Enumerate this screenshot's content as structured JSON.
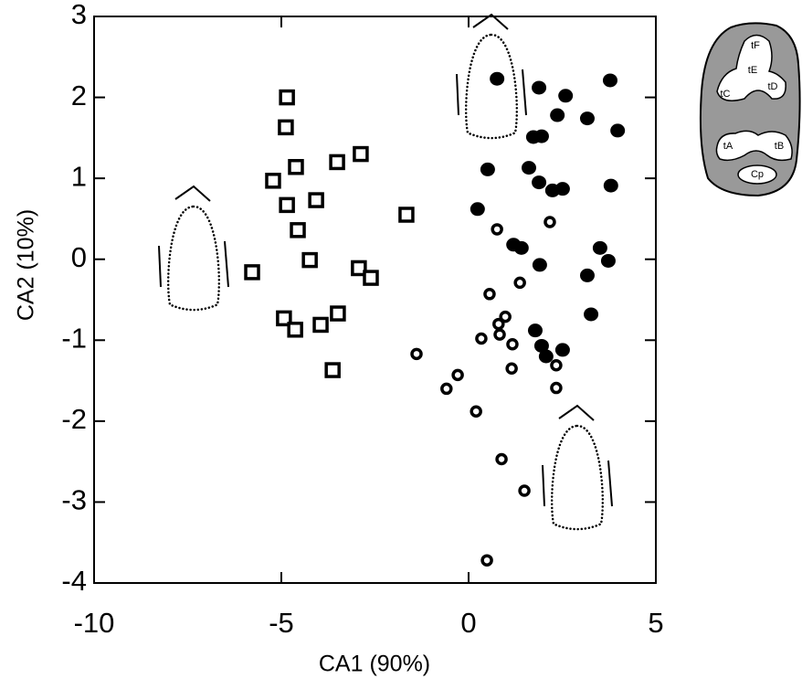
{
  "chart_data": {
    "type": "scatter",
    "xlabel": "CA1 (90%)",
    "ylabel": "CA2 (10%)",
    "xlim": [
      -10,
      5
    ],
    "ylim": [
      -4,
      3
    ],
    "xticks": [
      -10,
      -5,
      0,
      5
    ],
    "yticks": [
      -4,
      -3,
      -2,
      -1,
      0,
      1,
      2,
      3
    ],
    "series": [
      {
        "marker": "square",
        "color": "#000000",
        "x": [
          -4.85,
          -4.88,
          -5.22,
          -4.61,
          -3.51,
          -2.88,
          -4.85,
          -4.07,
          -4.56,
          -1.66,
          -5.78,
          -4.24,
          -2.93,
          -2.61,
          -4.93,
          -4.63,
          -3.95,
          -3.49,
          -3.63
        ],
        "values": [
          2.0,
          1.63,
          0.97,
          1.14,
          1.2,
          1.3,
          0.67,
          0.73,
          0.36,
          0.55,
          -0.16,
          -0.01,
          -0.11,
          -0.23,
          -0.73,
          -0.87,
          -0.81,
          -0.67,
          -1.37
        ]
      },
      {
        "marker": "circle",
        "color": "#000000",
        "x": [
          0.76,
          1.88,
          2.59,
          3.78,
          2.37,
          3.17,
          3.98,
          1.73,
          1.95,
          0.51,
          1.61,
          1.88,
          2.24,
          2.51,
          3.8,
          0.24,
          1.2,
          1.41,
          3.51,
          3.73,
          1.9,
          3.17,
          3.27,
          1.78,
          1.95,
          2.51,
          2.07
        ],
        "values": [
          2.23,
          2.12,
          2.02,
          2.21,
          1.78,
          1.74,
          1.59,
          1.51,
          1.52,
          1.11,
          1.13,
          0.95,
          0.85,
          0.87,
          0.91,
          0.62,
          0.18,
          0.14,
          0.14,
          -0.02,
          -0.07,
          -0.2,
          -0.68,
          -0.88,
          -1.07,
          -1.12,
          -1.2
        ]
      },
      {
        "marker": "ring",
        "color": "#000000",
        "x": [
          0.76,
          2.17,
          0.56,
          1.37,
          0.8,
          0.98,
          0.83,
          0.34,
          1.17,
          -1.39,
          2.34,
          1.15,
          -0.29,
          -0.59,
          2.34,
          0.2,
          0.88,
          1.49,
          0.49
        ],
        "values": [
          0.37,
          0.46,
          -0.43,
          -0.29,
          -0.8,
          -0.71,
          -0.93,
          -0.98,
          -1.05,
          -1.17,
          -1.31,
          -1.35,
          -1.43,
          -1.6,
          -1.59,
          -1.88,
          -2.47,
          -2.86,
          -3.72
        ]
      }
    ]
  },
  "inset": {
    "labels": [
      "tF",
      "tE",
      "tD",
      "tC",
      "tA",
      "tB",
      "Cp"
    ]
  }
}
